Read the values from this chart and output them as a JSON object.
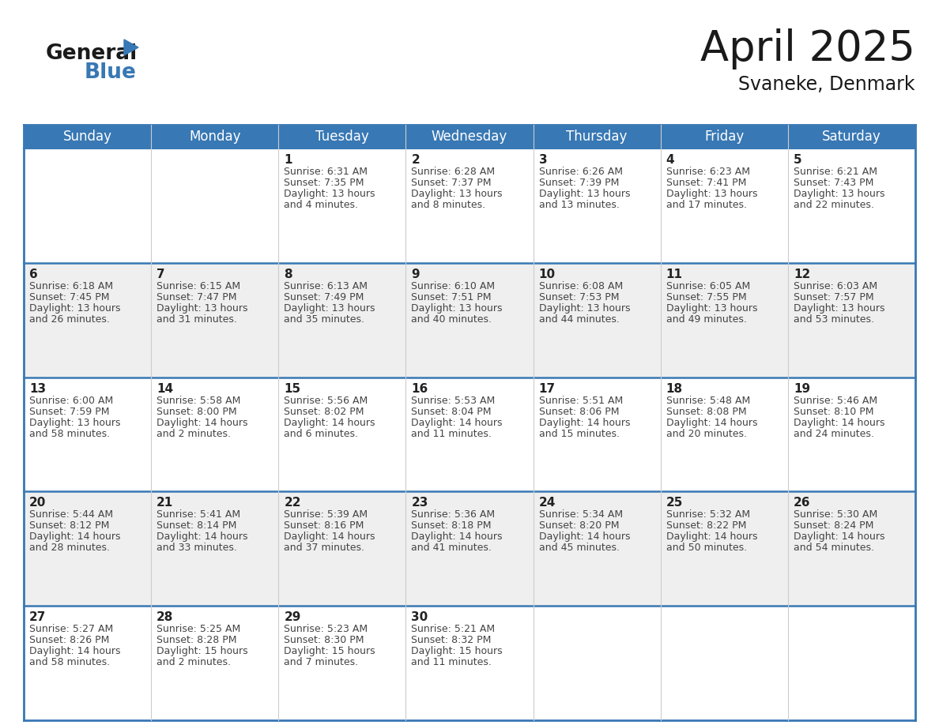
{
  "title": "April 2025",
  "subtitle": "Svaneke, Denmark",
  "header_color": "#3878b4",
  "header_text_color": "#ffffff",
  "cell_bg_white": "#ffffff",
  "cell_bg_gray": "#efefef",
  "border_color": "#3878b4",
  "thin_border": "#cccccc",
  "day_names": [
    "Sunday",
    "Monday",
    "Tuesday",
    "Wednesday",
    "Thursday",
    "Friday",
    "Saturday"
  ],
  "days": [
    {
      "day": 1,
      "col": 2,
      "row": 0,
      "sunrise": "6:31 AM",
      "sunset": "7:35 PM",
      "daylight": "13 hours and 4 minutes."
    },
    {
      "day": 2,
      "col": 3,
      "row": 0,
      "sunrise": "6:28 AM",
      "sunset": "7:37 PM",
      "daylight": "13 hours and 8 minutes."
    },
    {
      "day": 3,
      "col": 4,
      "row": 0,
      "sunrise": "6:26 AM",
      "sunset": "7:39 PM",
      "daylight": "13 hours and 13 minutes."
    },
    {
      "day": 4,
      "col": 5,
      "row": 0,
      "sunrise": "6:23 AM",
      "sunset": "7:41 PM",
      "daylight": "13 hours and 17 minutes."
    },
    {
      "day": 5,
      "col": 6,
      "row": 0,
      "sunrise": "6:21 AM",
      "sunset": "7:43 PM",
      "daylight": "13 hours and 22 minutes."
    },
    {
      "day": 6,
      "col": 0,
      "row": 1,
      "sunrise": "6:18 AM",
      "sunset": "7:45 PM",
      "daylight": "13 hours and 26 minutes."
    },
    {
      "day": 7,
      "col": 1,
      "row": 1,
      "sunrise": "6:15 AM",
      "sunset": "7:47 PM",
      "daylight": "13 hours and 31 minutes."
    },
    {
      "day": 8,
      "col": 2,
      "row": 1,
      "sunrise": "6:13 AM",
      "sunset": "7:49 PM",
      "daylight": "13 hours and 35 minutes."
    },
    {
      "day": 9,
      "col": 3,
      "row": 1,
      "sunrise": "6:10 AM",
      "sunset": "7:51 PM",
      "daylight": "13 hours and 40 minutes."
    },
    {
      "day": 10,
      "col": 4,
      "row": 1,
      "sunrise": "6:08 AM",
      "sunset": "7:53 PM",
      "daylight": "13 hours and 44 minutes."
    },
    {
      "day": 11,
      "col": 5,
      "row": 1,
      "sunrise": "6:05 AM",
      "sunset": "7:55 PM",
      "daylight": "13 hours and 49 minutes."
    },
    {
      "day": 12,
      "col": 6,
      "row": 1,
      "sunrise": "6:03 AM",
      "sunset": "7:57 PM",
      "daylight": "13 hours and 53 minutes."
    },
    {
      "day": 13,
      "col": 0,
      "row": 2,
      "sunrise": "6:00 AM",
      "sunset": "7:59 PM",
      "daylight": "13 hours and 58 minutes."
    },
    {
      "day": 14,
      "col": 1,
      "row": 2,
      "sunrise": "5:58 AM",
      "sunset": "8:00 PM",
      "daylight": "14 hours and 2 minutes."
    },
    {
      "day": 15,
      "col": 2,
      "row": 2,
      "sunrise": "5:56 AM",
      "sunset": "8:02 PM",
      "daylight": "14 hours and 6 minutes."
    },
    {
      "day": 16,
      "col": 3,
      "row": 2,
      "sunrise": "5:53 AM",
      "sunset": "8:04 PM",
      "daylight": "14 hours and 11 minutes."
    },
    {
      "day": 17,
      "col": 4,
      "row": 2,
      "sunrise": "5:51 AM",
      "sunset": "8:06 PM",
      "daylight": "14 hours and 15 minutes."
    },
    {
      "day": 18,
      "col": 5,
      "row": 2,
      "sunrise": "5:48 AM",
      "sunset": "8:08 PM",
      "daylight": "14 hours and 20 minutes."
    },
    {
      "day": 19,
      "col": 6,
      "row": 2,
      "sunrise": "5:46 AM",
      "sunset": "8:10 PM",
      "daylight": "14 hours and 24 minutes."
    },
    {
      "day": 20,
      "col": 0,
      "row": 3,
      "sunrise": "5:44 AM",
      "sunset": "8:12 PM",
      "daylight": "14 hours and 28 minutes."
    },
    {
      "day": 21,
      "col": 1,
      "row": 3,
      "sunrise": "5:41 AM",
      "sunset": "8:14 PM",
      "daylight": "14 hours and 33 minutes."
    },
    {
      "day": 22,
      "col": 2,
      "row": 3,
      "sunrise": "5:39 AM",
      "sunset": "8:16 PM",
      "daylight": "14 hours and 37 minutes."
    },
    {
      "day": 23,
      "col": 3,
      "row": 3,
      "sunrise": "5:36 AM",
      "sunset": "8:18 PM",
      "daylight": "14 hours and 41 minutes."
    },
    {
      "day": 24,
      "col": 4,
      "row": 3,
      "sunrise": "5:34 AM",
      "sunset": "8:20 PM",
      "daylight": "14 hours and 45 minutes."
    },
    {
      "day": 25,
      "col": 5,
      "row": 3,
      "sunrise": "5:32 AM",
      "sunset": "8:22 PM",
      "daylight": "14 hours and 50 minutes."
    },
    {
      "day": 26,
      "col": 6,
      "row": 3,
      "sunrise": "5:30 AM",
      "sunset": "8:24 PM",
      "daylight": "14 hours and 54 minutes."
    },
    {
      "day": 27,
      "col": 0,
      "row": 4,
      "sunrise": "5:27 AM",
      "sunset": "8:26 PM",
      "daylight": "14 hours and 58 minutes."
    },
    {
      "day": 28,
      "col": 1,
      "row": 4,
      "sunrise": "5:25 AM",
      "sunset": "8:28 PM",
      "daylight": "15 hours and 2 minutes."
    },
    {
      "day": 29,
      "col": 2,
      "row": 4,
      "sunrise": "5:23 AM",
      "sunset": "8:30 PM",
      "daylight": "15 hours and 7 minutes."
    },
    {
      "day": 30,
      "col": 3,
      "row": 4,
      "sunrise": "5:21 AM",
      "sunset": "8:32 PM",
      "daylight": "15 hours and 11 minutes."
    }
  ],
  "num_rows": 5,
  "num_cols": 7,
  "logo_text1": "General",
  "logo_text2": "Blue",
  "logo_triangle_color": "#3878b4",
  "title_fontsize": 38,
  "subtitle_fontsize": 17,
  "header_fontsize": 12,
  "day_num_fontsize": 11,
  "cell_fontsize": 9
}
